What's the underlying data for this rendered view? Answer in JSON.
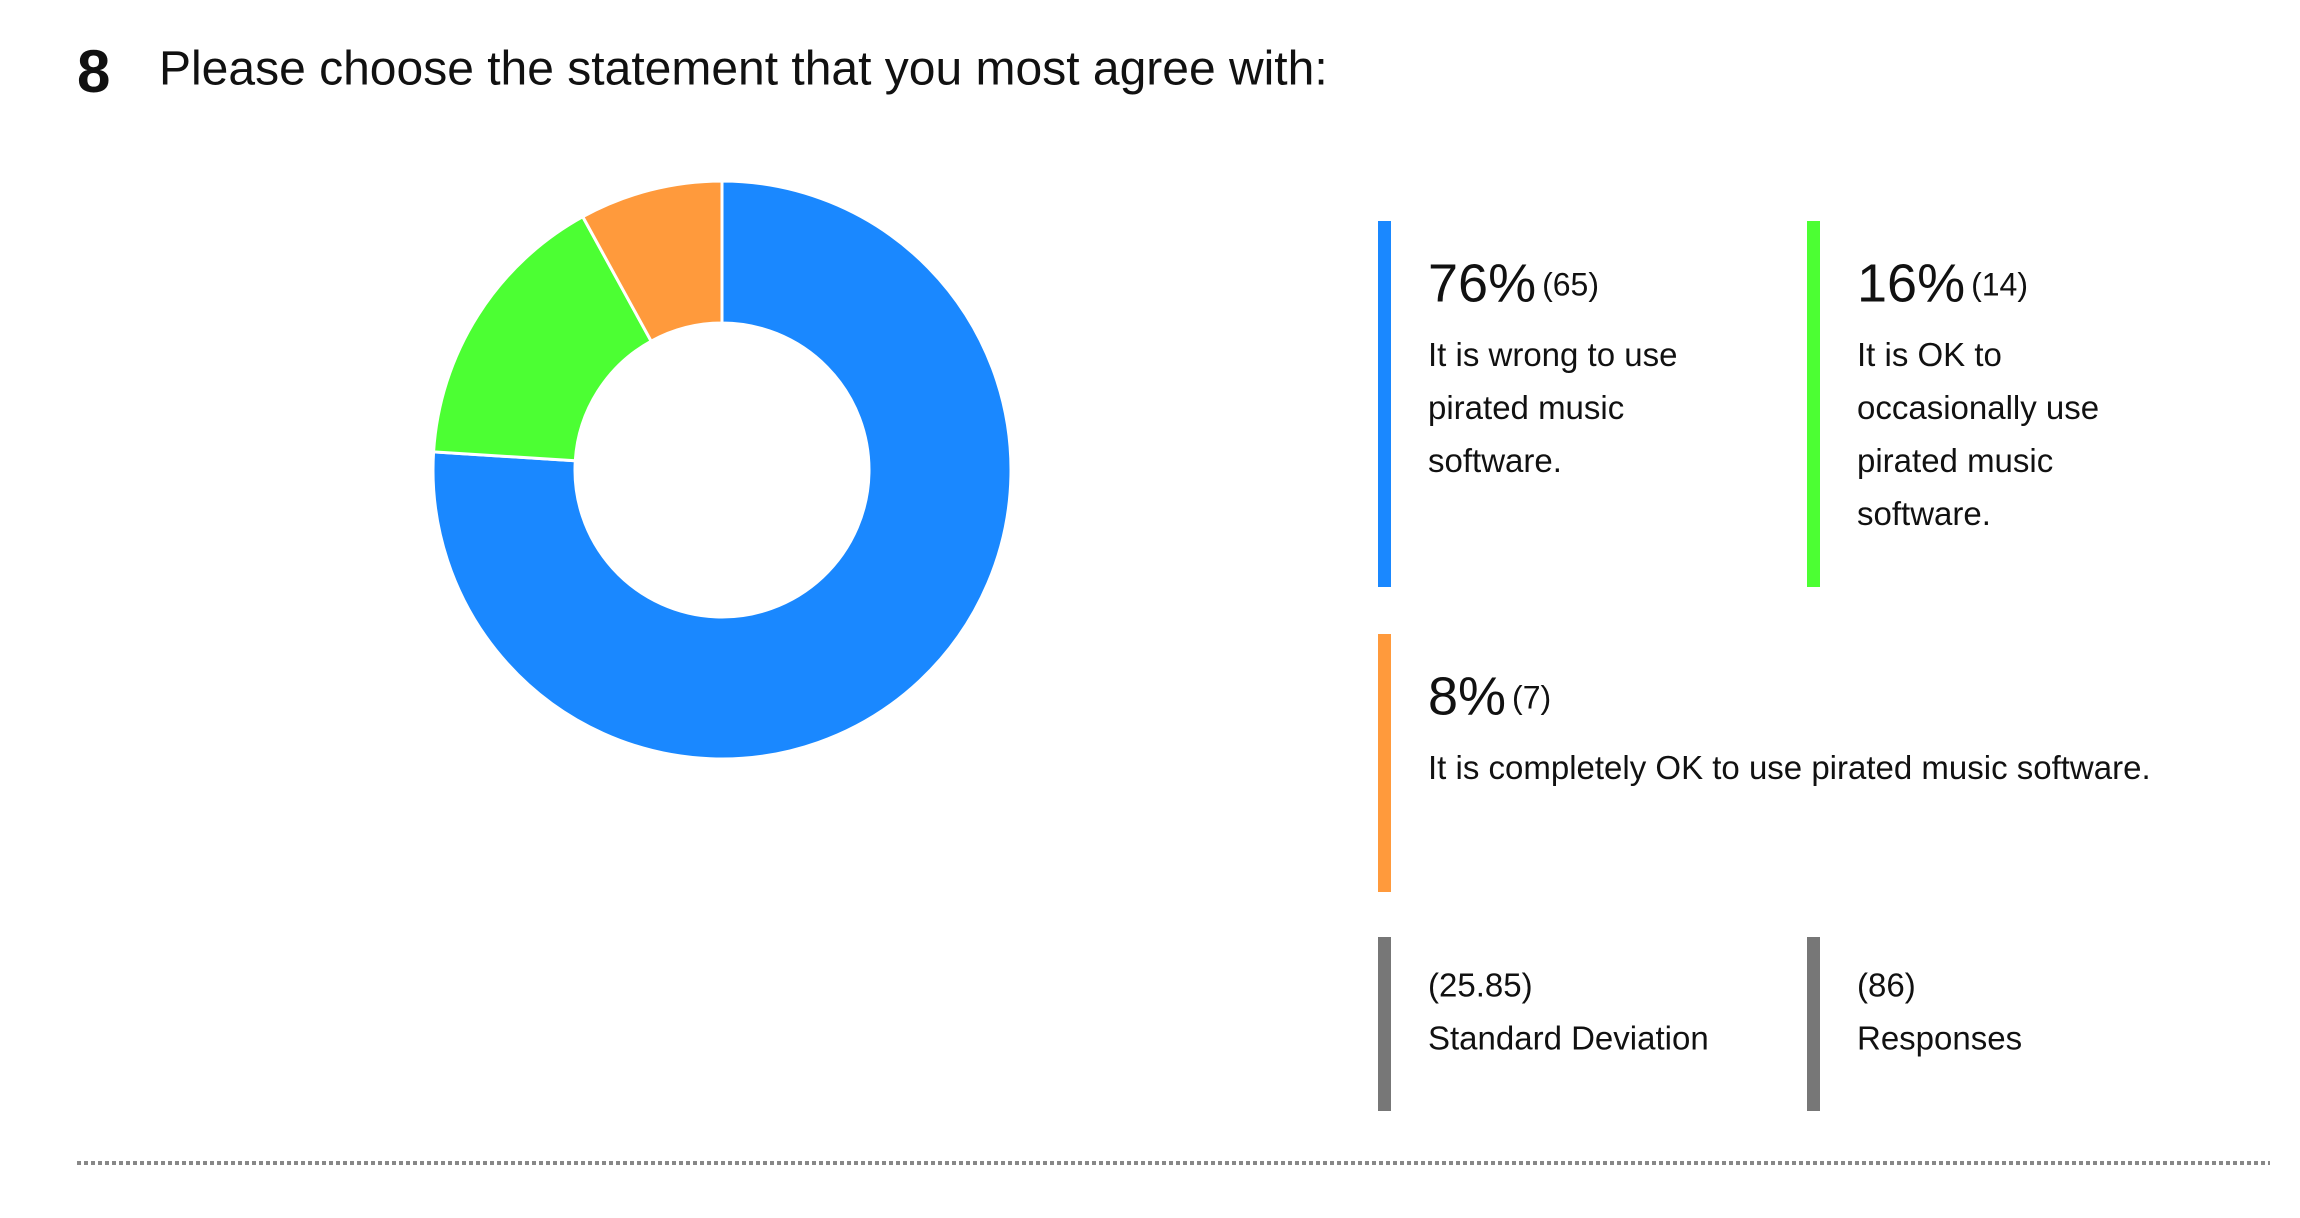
{
  "chart_data": {
    "type": "pie",
    "donut": true,
    "question_number": 8,
    "title": "Please choose the statement that you most agree with:",
    "categories": [
      "It is wrong to use pirated music software.",
      "It is OK to occasionally use pirated music software.",
      "It is completely OK to use pirated music software."
    ],
    "values": [
      76,
      16,
      8
    ],
    "value_labels": [
      "76%",
      "16%",
      "8%"
    ],
    "counts": [
      {
        "value": 65,
        "label": "(65)"
      },
      {
        "value": 14,
        "label": "(14)"
      },
      {
        "value": 7,
        "label": "(7)"
      }
    ],
    "colors": [
      "#1a88ff",
      "#4cff33",
      "#ff9a3c"
    ],
    "stats": [
      {
        "value": 25.85,
        "label": "(25.85)",
        "name": "Standard Deviation"
      },
      {
        "value": 86,
        "label": "(86)",
        "name": "Responses"
      }
    ],
    "stats_color": "#777777"
  }
}
